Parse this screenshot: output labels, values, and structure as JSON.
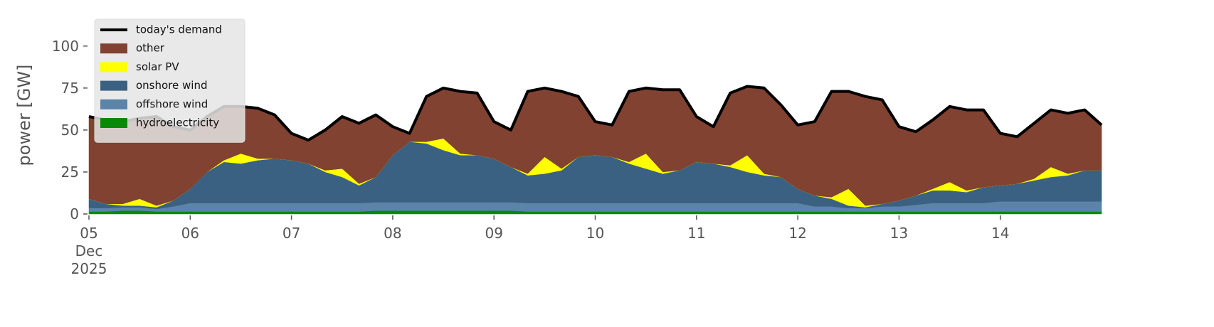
{
  "chart_data": {
    "type": "stacked_area",
    "ylabel": "power [GW]",
    "x": [
      0,
      4,
      8,
      12,
      16,
      20,
      24,
      28,
      32,
      36,
      40,
      44,
      48,
      52,
      56,
      60,
      64,
      68,
      72,
      76,
      80,
      84,
      88,
      92,
      96,
      100,
      104,
      108,
      112,
      116,
      120,
      124,
      128,
      132,
      136,
      140,
      144,
      148,
      152,
      156,
      160,
      164,
      168,
      172,
      176,
      180,
      184,
      188,
      192,
      196,
      200,
      204,
      208,
      212,
      216,
      220,
      224,
      228,
      232,
      236,
      240
    ],
    "xlim": [
      0,
      240
    ],
    "xticks": [
      {
        "value": 0,
        "label": "05\nDec\n2025"
      },
      {
        "value": 24,
        "label": "06"
      },
      {
        "value": 48,
        "label": "07"
      },
      {
        "value": 72,
        "label": "08"
      },
      {
        "value": 96,
        "label": "09"
      },
      {
        "value": 120,
        "label": "10"
      },
      {
        "value": 144,
        "label": "11"
      },
      {
        "value": 168,
        "label": "12"
      },
      {
        "value": 192,
        "label": "13"
      },
      {
        "value": 216,
        "label": "14"
      }
    ],
    "ylim": [
      0,
      116
    ],
    "yticks": [
      0,
      25,
      50,
      75,
      100
    ],
    "grid": false,
    "legend": "upper left",
    "line_series": {
      "name": "today's demand",
      "color": "#000000",
      "values": [
        58,
        56,
        55,
        57,
        58,
        52,
        50,
        58,
        64,
        64,
        63,
        59,
        48,
        44,
        50,
        58,
        54,
        59,
        52,
        48,
        70,
        75,
        73,
        72,
        55,
        50,
        73,
        75,
        73,
        70,
        55,
        53,
        73,
        75,
        74,
        74,
        58,
        52,
        72,
        76,
        75,
        65,
        53,
        55,
        73,
        73,
        70,
        68,
        52,
        49,
        56,
        64,
        62,
        62,
        48,
        46,
        54,
        62,
        60,
        62,
        53
      ]
    },
    "series": [
      {
        "name": "hydroelectricity",
        "color": "#088a08",
        "values": [
          1.5,
          1.5,
          2,
          2,
          1.5,
          1.5,
          1.5,
          1.5,
          1.5,
          1.5,
          1.5,
          1.5,
          1.5,
          1.5,
          1.5,
          1.5,
          1.5,
          2,
          2,
          2,
          2,
          2,
          2,
          2,
          2,
          2,
          1.5,
          1.5,
          1.5,
          1.5,
          1.5,
          1.5,
          1.5,
          1.5,
          1.5,
          1.5,
          1.5,
          1.5,
          1.5,
          1.5,
          1.5,
          1.5,
          1.5,
          1.5,
          1.5,
          1.5,
          1.5,
          1.5,
          1.5,
          1.5,
          1.5,
          1.5,
          1.5,
          1.5,
          1.5,
          1.5,
          1.5,
          1.5,
          1.5,
          1.5,
          1.5
        ]
      },
      {
        "name": "offshore wind",
        "color": "#5b84a8",
        "values": [
          2,
          2,
          2,
          2,
          1.5,
          3,
          5,
          5,
          5,
          5,
          5,
          5,
          5,
          5,
          5,
          5,
          5,
          5,
          5,
          5,
          5,
          5,
          5,
          5,
          5,
          5,
          5,
          5,
          5,
          5,
          5,
          5,
          5,
          5,
          5,
          5,
          5,
          5,
          5,
          5,
          5,
          5,
          5,
          3,
          3,
          2,
          2,
          3,
          3,
          4,
          5,
          5,
          5,
          5,
          6,
          6,
          6,
          6,
          6,
          6,
          6
        ]
      },
      {
        "name": "onshore wind",
        "color": "#3b6182",
        "values": [
          5.5,
          2.5,
          1,
          1,
          1,
          3.5,
          8.5,
          18.5,
          24.5,
          23.5,
          25.5,
          26.5,
          25.5,
          23.5,
          18.5,
          15.5,
          10.5,
          15,
          28,
          36,
          35,
          31,
          28,
          28,
          26,
          21,
          16.5,
          17.5,
          19.5,
          27.5,
          28.5,
          27.5,
          23.5,
          20.5,
          17.5,
          19.5,
          24.5,
          23.5,
          21.5,
          18.5,
          16.5,
          15.5,
          8.5,
          6.5,
          4.5,
          1.5,
          0.5,
          1.5,
          3.5,
          5.5,
          7.5,
          7.5,
          6.5,
          9.5,
          9.5,
          10.5,
          12.5,
          14.5,
          15.5,
          18.5,
          18.5
        ]
      },
      {
        "name": "solar PV",
        "color": "#ffff00",
        "values": [
          0,
          0,
          1,
          4,
          1,
          0,
          0,
          0,
          1,
          6,
          1,
          0,
          0,
          0,
          1,
          5,
          1,
          0,
          0,
          0,
          1,
          7,
          1,
          0,
          0,
          0,
          1,
          10,
          1,
          0,
          0,
          0,
          1,
          9,
          1,
          0,
          0,
          0,
          1,
          10,
          1,
          0,
          0,
          0,
          1,
          10,
          1,
          0,
          0,
          0,
          1,
          5,
          1,
          0,
          0,
          0,
          1,
          6,
          1,
          0,
          0
        ]
      },
      {
        "name": "other",
        "color": "#814232",
        "values": [
          49,
          50,
          49,
          48,
          53,
          44,
          35,
          33,
          32,
          28,
          30,
          26,
          16,
          14,
          24,
          31,
          36,
          37,
          17,
          5,
          27,
          30,
          37,
          37,
          22,
          22,
          49,
          41,
          46,
          36,
          20,
          19,
          42,
          39,
          49,
          48,
          27,
          22,
          43,
          41,
          51,
          43,
          38,
          44,
          63,
          58,
          65,
          62,
          44,
          38,
          41,
          45,
          48,
          46,
          31,
          28,
          33,
          34,
          36,
          36,
          27
        ]
      }
    ]
  }
}
